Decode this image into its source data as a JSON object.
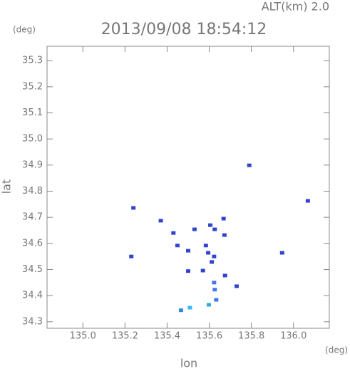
{
  "chart_data": {
    "type": "scatter",
    "altitude_label": "ALT(km) 2.0",
    "title": "2013/09/08 18:54:12",
    "y_unit": "(deg)",
    "x_unit": "(deg)",
    "x_label": "lon",
    "y_label": "lat",
    "x": [
      135.24,
      135.37,
      135.43,
      135.53,
      135.605,
      135.668,
      135.626,
      135.672,
      135.449,
      135.23,
      135.5,
      135.584,
      135.595,
      135.623,
      135.612,
      135.57,
      135.5,
      135.675,
      135.623,
      135.626,
      135.73,
      135.633,
      135.598,
      135.508,
      135.466,
      135.79,
      136.068,
      135.946
    ],
    "values": [
      34.736,
      34.687,
      34.64,
      34.654,
      34.67,
      34.695,
      34.654,
      34.632,
      34.592,
      34.55,
      34.572,
      34.592,
      34.564,
      34.55,
      34.529,
      34.496,
      34.494,
      34.477,
      34.45,
      34.423,
      34.436,
      34.384,
      34.365,
      34.354,
      34.344,
      34.899,
      34.763,
      34.564
    ],
    "colors": [
      "#3344cc",
      "#3344cc",
      "#3344cc",
      "#3344cc",
      "#3344cc",
      "#3344cc",
      "#3344cc",
      "#3344cc",
      "#3344cc",
      "#3344cc",
      "#3344cc",
      "#3344cc",
      "#3344cc",
      "#3344cc",
      "#3344cc",
      "#3344cc",
      "#3344cc",
      "#3344cc",
      "#4477ee",
      "#4477ee",
      "#3344cc",
      "#4477ee",
      "#33aadd",
      "#33bbee",
      "#3388dd",
      "#3344cc",
      "#3344cc",
      "#3344cc"
    ],
    "xlim": [
      134.83,
      136.17
    ],
    "ylim": [
      34.275,
      35.355
    ],
    "xticks": [
      {
        "value": 135,
        "label": "135.0"
      },
      135.2,
      135.4,
      135.6,
      135.8,
      {
        "value": 136,
        "label": "136.0"
      }
    ],
    "yticks": [
      34.3,
      34.4,
      34.5,
      34.6,
      34.7,
      34.8,
      34.9,
      {
        "value": 35,
        "label": "35.0"
      },
      35.1,
      35.2,
      35.3
    ]
  }
}
